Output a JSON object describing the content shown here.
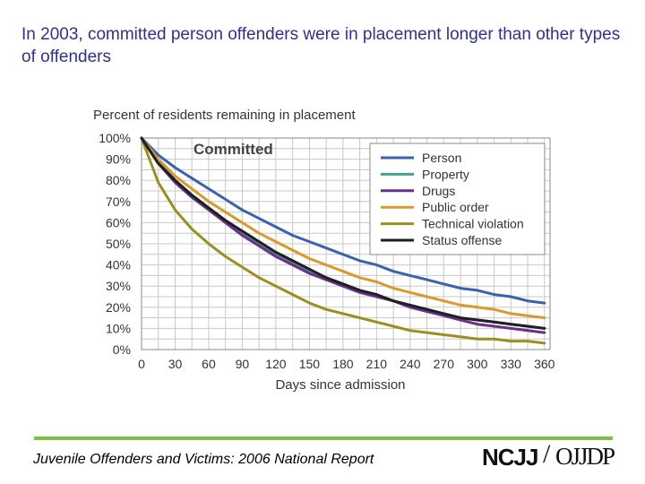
{
  "slide": {
    "title": "In 2003, committed person offenders were in placement longer than other types of offenders",
    "footer": "Juvenile Offenders and Victims: 2006 National Report",
    "logo_left": "NCJJ",
    "logo_slash": "/",
    "logo_right": "OJJDP",
    "accent_color": "#7cc242"
  },
  "chart_data": {
    "type": "line",
    "title": "Percent of residents remaining in placement",
    "panel_label": "Committed",
    "xlabel": "Days since admission",
    "x_ticks": [
      0,
      30,
      60,
      90,
      120,
      150,
      180,
      210,
      240,
      270,
      300,
      330,
      360
    ],
    "y_ticks": [
      "0%",
      "10%",
      "20%",
      "30%",
      "40%",
      "50%",
      "60%",
      "70%",
      "80%",
      "90%",
      "100%"
    ],
    "xlim": [
      0,
      365
    ],
    "ylim": [
      0,
      100
    ],
    "grid": true,
    "legend_position": "top-right",
    "x": [
      0,
      15,
      30,
      45,
      60,
      75,
      90,
      105,
      120,
      135,
      150,
      165,
      180,
      195,
      210,
      225,
      240,
      255,
      270,
      285,
      300,
      315,
      330,
      345,
      360
    ],
    "series": [
      {
        "name": "Person",
        "color": "#3a62b0",
        "values": [
          100,
          92,
          86,
          81,
          76,
          71,
          66,
          62,
          58,
          54,
          51,
          48,
          45,
          42,
          40,
          37,
          35,
          33,
          31,
          29,
          28,
          26,
          25,
          23,
          22
        ]
      },
      {
        "name": "Property",
        "color": "#4c9f8e",
        "values": [
          100,
          89,
          80,
          73,
          67,
          61,
          55,
          50,
          45,
          41,
          37,
          34,
          31,
          28,
          25,
          23,
          21,
          19,
          17,
          15,
          14,
          13,
          12,
          11,
          10
        ]
      },
      {
        "name": "Drugs",
        "color": "#6a2f8f",
        "values": [
          100,
          88,
          79,
          72,
          66,
          60,
          54,
          49,
          44,
          40,
          36,
          33,
          30,
          27,
          25,
          23,
          20,
          18,
          16,
          14,
          12,
          11,
          10,
          9,
          8
        ]
      },
      {
        "name": "Public order",
        "color": "#d99a2b",
        "values": [
          100,
          90,
          82,
          76,
          70,
          65,
          60,
          55,
          51,
          47,
          43,
          40,
          37,
          34,
          32,
          29,
          27,
          25,
          23,
          21,
          20,
          19,
          17,
          16,
          15
        ]
      },
      {
        "name": "Technical violation",
        "color": "#99901f",
        "values": [
          100,
          79,
          66,
          57,
          50,
          44,
          39,
          34,
          30,
          26,
          22,
          19,
          17,
          15,
          13,
          11,
          9,
          8,
          7,
          6,
          5,
          5,
          4,
          4,
          3
        ]
      },
      {
        "name": "Status offense",
        "color": "#1f1f1f",
        "values": [
          100,
          88,
          80,
          73,
          67,
          61,
          56,
          51,
          46,
          42,
          38,
          34,
          31,
          28,
          26,
          23,
          21,
          19,
          17,
          15,
          14,
          13,
          12,
          11,
          10
        ]
      }
    ]
  }
}
